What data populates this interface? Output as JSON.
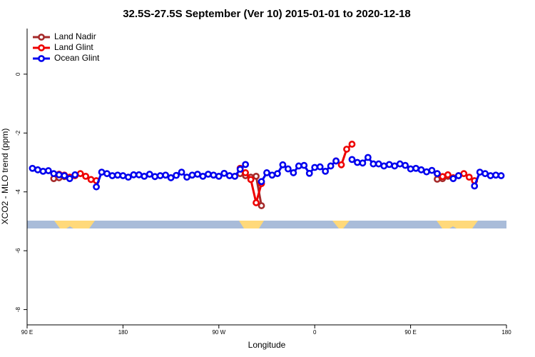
{
  "chart_data": {
    "type": "line",
    "title": "32.5S-27.5S September (Ver 10)   2015-01-01 to 2020-12-18",
    "xlabel": "Longitude",
    "ylabel": "XCO2 - MLO trend (ppm)",
    "xlim": [
      90,
      540
    ],
    "ylim": [
      -8.52,
      1.55
    ],
    "xticks": [
      {
        "value": 90,
        "label": "90 E"
      },
      180,
      {
        "value": 270,
        "label": "90 W"
      },
      {
        "value": 360,
        "label": "0"
      },
      {
        "value": 450,
        "label": "90 E"
      },
      180
    ],
    "yticks": [
      0,
      -2,
      -4,
      -6,
      -8
    ],
    "legend": "topleft",
    "x": [
      95,
      100,
      105,
      110,
      115,
      120,
      125,
      130,
      135,
      140,
      145,
      150,
      155,
      160,
      165,
      170,
      175,
      180,
      185,
      190,
      195,
      200,
      205,
      210,
      215,
      220,
      225,
      230,
      235,
      240,
      245,
      250,
      255,
      260,
      265,
      270,
      275,
      280,
      285,
      290,
      295,
      300,
      305,
      310,
      315,
      320,
      325,
      330,
      335,
      340,
      345,
      350,
      355,
      360,
      365,
      370,
      375,
      380,
      385,
      390,
      395,
      400,
      405,
      410,
      415,
      420,
      425,
      430,
      435,
      440,
      445,
      450,
      455,
      460,
      465,
      470,
      475,
      480,
      485,
      490,
      495,
      500,
      505,
      510,
      515,
      520,
      525,
      530,
      535
    ],
    "series": [
      {
        "name": "Land Nadir",
        "color": "#a52a2a",
        "values": [
          null,
          null,
          null,
          null,
          -3.55,
          -3.52,
          -3.48,
          null,
          null,
          null,
          null,
          null,
          null,
          null,
          null,
          null,
          null,
          null,
          null,
          null,
          null,
          null,
          null,
          null,
          null,
          null,
          null,
          null,
          null,
          null,
          null,
          null,
          null,
          null,
          null,
          null,
          null,
          null,
          null,
          -3.38,
          -3.45,
          -3.5,
          -3.47,
          -4.47,
          null,
          null,
          null,
          null,
          null,
          null,
          null,
          null,
          null,
          null,
          null,
          null,
          null,
          null,
          null,
          null,
          null,
          null,
          null,
          null,
          null,
          null,
          null,
          null,
          null,
          null,
          null,
          null,
          null,
          null,
          null,
          null,
          -3.57,
          -3.55,
          -3.47,
          null,
          null,
          null,
          null,
          null,
          null,
          null,
          null,
          null,
          null
        ]
      },
      {
        "name": "Land Glint",
        "color": "#ee0000",
        "values": [
          null,
          null,
          null,
          null,
          null,
          -3.4,
          -3.43,
          -3.5,
          -3.45,
          -3.38,
          -3.47,
          -3.58,
          -3.62,
          null,
          null,
          null,
          null,
          null,
          null,
          null,
          null,
          null,
          null,
          null,
          null,
          null,
          null,
          null,
          null,
          null,
          null,
          null,
          null,
          null,
          null,
          null,
          null,
          null,
          null,
          -3.2,
          -3.35,
          -3.58,
          -4.37,
          -3.72,
          null,
          null,
          null,
          null,
          null,
          null,
          null,
          null,
          null,
          null,
          null,
          null,
          null,
          -2.95,
          -3.08,
          -2.55,
          -2.38,
          null,
          null,
          null,
          null,
          null,
          null,
          null,
          null,
          null,
          null,
          null,
          null,
          null,
          null,
          null,
          -3.38,
          -3.48,
          -3.42,
          -3.52,
          -3.45,
          -3.38,
          -3.5,
          -3.62,
          null,
          null,
          null,
          null,
          null
        ]
      },
      {
        "name": "Ocean Glint",
        "color": "#0000ee",
        "values": [
          -3.2,
          -3.25,
          -3.3,
          -3.28,
          -3.38,
          -3.42,
          -3.45,
          -3.55,
          -3.42,
          null,
          null,
          null,
          -3.83,
          -3.33,
          -3.38,
          -3.45,
          -3.43,
          -3.45,
          -3.5,
          -3.42,
          -3.42,
          -3.47,
          -3.4,
          -3.48,
          -3.45,
          -3.43,
          -3.52,
          -3.44,
          -3.33,
          -3.5,
          -3.43,
          -3.4,
          -3.47,
          -3.4,
          -3.43,
          -3.47,
          -3.37,
          -3.45,
          -3.47,
          -3.23,
          -3.07,
          null,
          null,
          -3.65,
          -3.35,
          -3.43,
          -3.38,
          -3.08,
          -3.22,
          -3.35,
          -3.12,
          -3.1,
          -3.37,
          -3.17,
          -3.15,
          -3.3,
          -3.12,
          -2.95,
          null,
          null,
          -2.9,
          -3.0,
          -3.02,
          -2.83,
          -3.05,
          -3.05,
          -3.12,
          -3.07,
          -3.12,
          -3.05,
          -3.1,
          -3.22,
          -3.2,
          -3.25,
          -3.32,
          -3.27,
          -3.38,
          null,
          null,
          -3.55,
          -3.45,
          null,
          null,
          -3.8,
          -3.33,
          -3.38,
          -3.45,
          -3.43,
          -3.45
        ]
      }
    ]
  }
}
